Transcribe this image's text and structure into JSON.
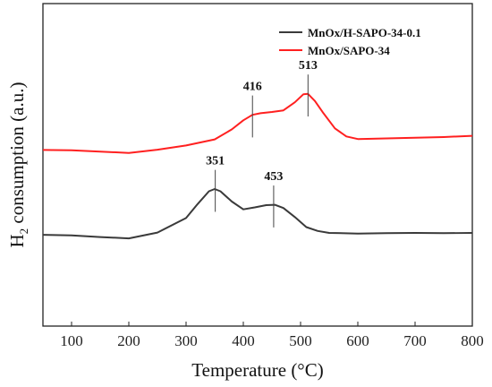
{
  "chart_data": {
    "type": "line",
    "title": "",
    "xlabel": "Temperature (°C)",
    "ylabel_main": "H",
    "ylabel_sub": "2",
    "ylabel_rest": " consumption (a.u.)",
    "xlim": [
      50,
      800
    ],
    "ylim": [
      0,
      1
    ],
    "x_ticks": [
      100,
      200,
      300,
      400,
      500,
      600,
      700,
      800
    ],
    "y_ticks_labeled": false,
    "grid": false,
    "legend_position": "top-right",
    "series": [
      {
        "name": "MnOx/H-SAPO-34-0.1",
        "color": "#3a3a3a",
        "x": [
          50,
          100,
          150,
          200,
          250,
          300,
          320,
          340,
          350,
          360,
          380,
          400,
          420,
          440,
          455,
          470,
          490,
          510,
          530,
          550,
          600,
          650,
          700,
          750,
          800
        ],
        "y": [
          0.283,
          0.281,
          0.276,
          0.272,
          0.29,
          0.335,
          0.378,
          0.418,
          0.425,
          0.418,
          0.386,
          0.362,
          0.368,
          0.375,
          0.376,
          0.366,
          0.338,
          0.307,
          0.295,
          0.289,
          0.287,
          0.288,
          0.289,
          0.288,
          0.289
        ]
      },
      {
        "name": "MnOx/SAPO-34",
        "color": "#ff2020",
        "x": [
          50,
          100,
          150,
          200,
          250,
          300,
          350,
          380,
          400,
          416,
          430,
          450,
          470,
          490,
          505,
          513,
          525,
          540,
          560,
          580,
          600,
          650,
          700,
          750,
          800
        ],
        "y": [
          0.546,
          0.545,
          0.541,
          0.537,
          0.547,
          0.56,
          0.579,
          0.61,
          0.638,
          0.655,
          0.66,
          0.664,
          0.669,
          0.694,
          0.719,
          0.72,
          0.698,
          0.66,
          0.613,
          0.588,
          0.58,
          0.582,
          0.584,
          0.586,
          0.59
        ]
      }
    ],
    "annotations": [
      {
        "label": "351",
        "x": 351,
        "series": 0
      },
      {
        "label": "453",
        "x": 453,
        "series": 0
      },
      {
        "label": "416",
        "x": 416,
        "series": 1
      },
      {
        "label": "513",
        "x": 513,
        "series": 1
      }
    ]
  }
}
